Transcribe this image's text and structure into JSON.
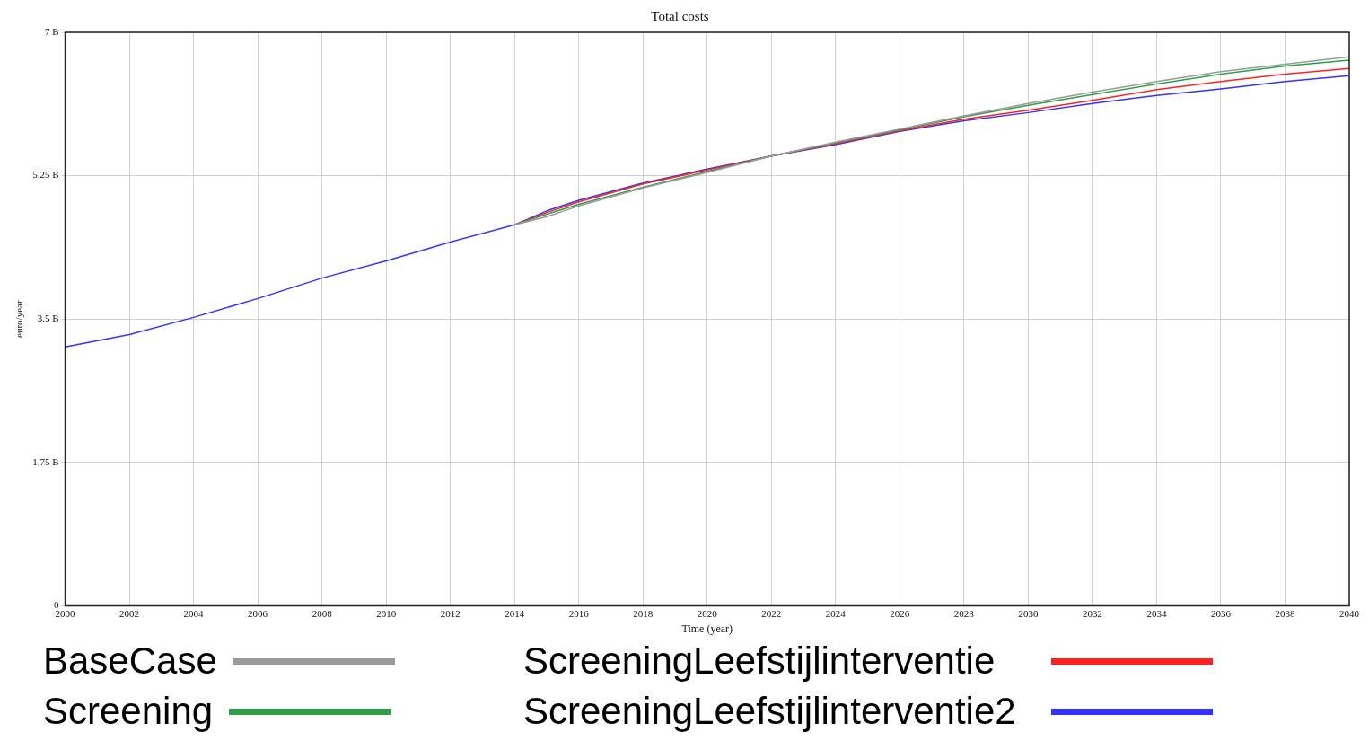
{
  "chart_data": {
    "type": "line",
    "title": "Total costs",
    "xlabel": "Time (year)",
    "ylabel": "euro/year",
    "x": [
      2000,
      2002,
      2004,
      2006,
      2008,
      2010,
      2012,
      2014,
      2015,
      2016,
      2018,
      2020,
      2022,
      2024,
      2026,
      2028,
      2030,
      2032,
      2034,
      2036,
      2038,
      2040
    ],
    "series": [
      {
        "name": "BaseCase",
        "color": "#9a9a9a",
        "values": [
          null,
          null,
          null,
          null,
          null,
          null,
          null,
          4.65,
          4.75,
          4.88,
          5.1,
          5.29,
          5.49,
          5.66,
          5.82,
          5.98,
          6.13,
          6.27,
          6.4,
          6.52,
          6.61,
          6.7
        ]
      },
      {
        "name": "Screening",
        "color": "#2e9e4a",
        "values": [
          null,
          null,
          null,
          null,
          null,
          null,
          null,
          4.65,
          4.78,
          4.9,
          5.11,
          5.3,
          5.49,
          5.65,
          5.81,
          5.97,
          6.11,
          6.24,
          6.37,
          6.49,
          6.59,
          6.66
        ]
      },
      {
        "name": "ScreeningLeefstijlinterventie",
        "color": "#ff2020",
        "values": [
          null,
          null,
          null,
          null,
          null,
          null,
          null,
          4.65,
          4.8,
          4.93,
          5.15,
          5.32,
          5.49,
          5.64,
          5.8,
          5.94,
          6.05,
          6.17,
          6.3,
          6.4,
          6.49,
          6.56
        ]
      },
      {
        "name": "ScreeningLeefstijlinterventie2",
        "color": "#3333ff",
        "values": [
          3.16,
          3.31,
          3.52,
          3.75,
          4.0,
          4.21,
          4.44,
          4.65,
          4.82,
          4.95,
          5.16,
          5.33,
          5.49,
          5.63,
          5.79,
          5.92,
          6.02,
          6.13,
          6.23,
          6.31,
          6.4,
          6.47
        ]
      }
    ],
    "xlim": [
      2000,
      2040
    ],
    "xticks": [
      2000,
      2002,
      2004,
      2006,
      2008,
      2010,
      2012,
      2014,
      2016,
      2018,
      2020,
      2022,
      2024,
      2026,
      2028,
      2030,
      2032,
      2034,
      2036,
      2038,
      2040
    ],
    "ylim": [
      0,
      7
    ],
    "yticks": [
      {
        "value": 0,
        "label": "0"
      },
      {
        "value": 1.75,
        "label": "1.75 B"
      },
      {
        "value": 3.5,
        "label": "3.5 B"
      },
      {
        "value": 5.25,
        "label": "5.25 B"
      },
      {
        "value": 7,
        "label": "7 B"
      }
    ],
    "grid": true,
    "legend": "bottom",
    "marker": "none",
    "line_style": "solid"
  }
}
